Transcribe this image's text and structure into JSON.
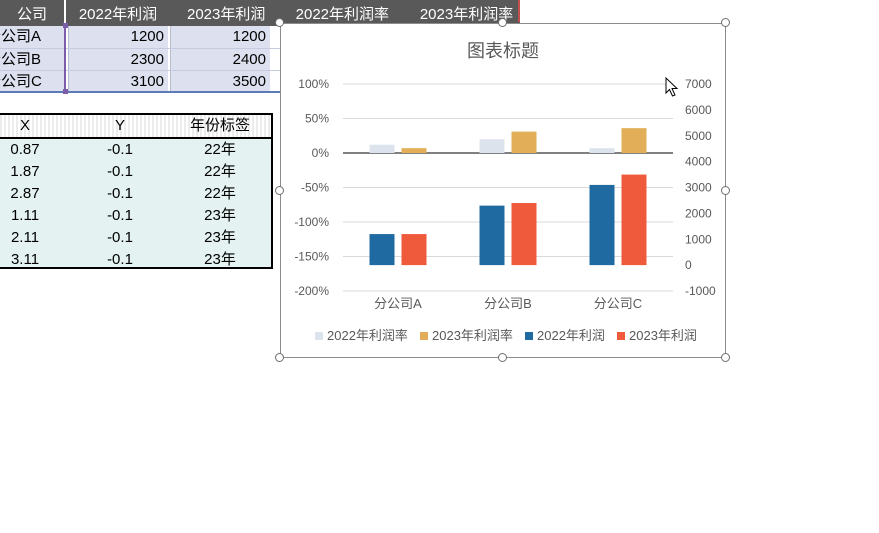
{
  "top_table": {
    "header": {
      "company": "公司",
      "columns": [
        "2022年利润",
        "2023年利润",
        "2022年利润率",
        "2023年利润率"
      ]
    },
    "rows": [
      {
        "company": "分公司A",
        "p2022": "1200",
        "p2023": "1200"
      },
      {
        "company": "分公司B",
        "p2022": "2300",
        "p2023": "2400"
      },
      {
        "company": "分公司C",
        "p2022": "3100",
        "p2023": "3500"
      }
    ]
  },
  "helper_table": {
    "headers": [
      "X",
      "Y",
      "年份标签"
    ],
    "rows": [
      [
        "0.87",
        "-0.1",
        "22年"
      ],
      [
        "1.87",
        "-0.1",
        "22年"
      ],
      [
        "2.87",
        "-0.1",
        "22年"
      ],
      [
        "1.11",
        "-0.1",
        "23年"
      ],
      [
        "2.11",
        "-0.1",
        "23年"
      ],
      [
        "3.11",
        "-0.1",
        "23年"
      ]
    ]
  },
  "chart_data": {
    "type": "bar",
    "title": "图表标题",
    "categories": [
      "分公司A",
      "分公司B",
      "分公司C"
    ],
    "y_left": {
      "ticks": [
        "100%",
        "50%",
        "0%",
        "-50%",
        "-100%",
        "-150%",
        "-200%"
      ],
      "range": [
        -2.0,
        1.0
      ]
    },
    "y_right": {
      "ticks": [
        "7000",
        "6000",
        "5000",
        "4000",
        "3000",
        "2000",
        "1000",
        "0",
        "-1000"
      ],
      "range": [
        -1000,
        7000
      ]
    },
    "series": [
      {
        "name": "2022年利润率",
        "axis": "left",
        "color": "#dde3ec",
        "values": [
          0.12,
          0.2,
          0.07
        ]
      },
      {
        "name": "2023年利润率",
        "axis": "left",
        "color": "#e2ae57",
        "values": [
          0.07,
          0.31,
          0.36
        ]
      },
      {
        "name": "2022年利润",
        "axis": "right",
        "color": "#1f6aa1",
        "values": [
          1200,
          2300,
          3100
        ]
      },
      {
        "name": "2023年利润",
        "axis": "right",
        "color": "#f05a3c",
        "values": [
          1200,
          2400,
          3500
        ]
      }
    ],
    "legend_position": "bottom",
    "grid": true
  },
  "colors": {
    "header_bg": "#595959",
    "selection_fill": "#dde1ef",
    "helper_fill": "#e4f2f2"
  }
}
